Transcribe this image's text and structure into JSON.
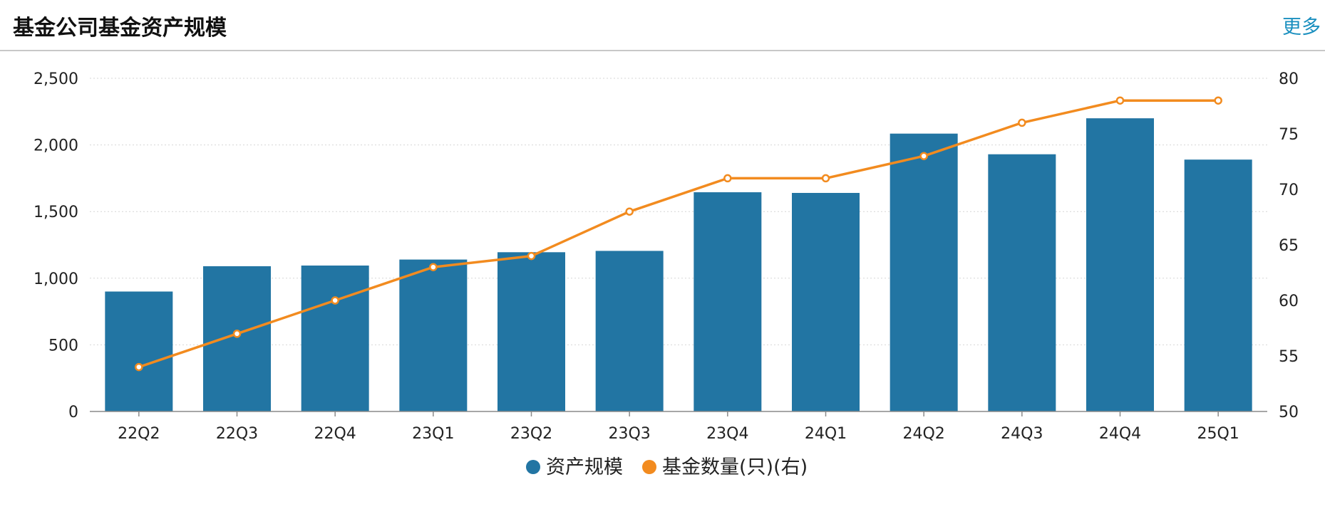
{
  "header": {
    "title": "基金公司基金资产规模",
    "more_label": "更多"
  },
  "colors": {
    "bar": "#2275a3",
    "line": "#f28b1f",
    "accent_link": "#1a8fbf"
  },
  "chart_data": {
    "type": "bar",
    "title": "基金公司基金资产规模",
    "categories": [
      "22Q2",
      "22Q3",
      "22Q4",
      "23Q1",
      "23Q2",
      "23Q3",
      "23Q4",
      "24Q1",
      "24Q2",
      "24Q3",
      "24Q4",
      "25Q1"
    ],
    "series": [
      {
        "name": "资产规模",
        "type": "bar",
        "axis": "left",
        "values": [
          900,
          1090,
          1095,
          1140,
          1195,
          1205,
          1645,
          1640,
          2085,
          1930,
          2200,
          1890
        ]
      },
      {
        "name": "基金数量(只)(右)",
        "type": "line",
        "axis": "right",
        "values": [
          54,
          57,
          60,
          63,
          64,
          68,
          71,
          71,
          73,
          76,
          78,
          78
        ]
      }
    ],
    "y_left": {
      "min": 0,
      "max": 2500,
      "ticks": [
        "0",
        "500",
        "1,000",
        "1,500",
        "2,000",
        "2,500"
      ]
    },
    "y_right": {
      "min": 50,
      "max": 80,
      "ticks": [
        "50",
        "55",
        "60",
        "65",
        "70",
        "75",
        "80"
      ]
    },
    "grid": true,
    "legend_position": "bottom-center"
  }
}
